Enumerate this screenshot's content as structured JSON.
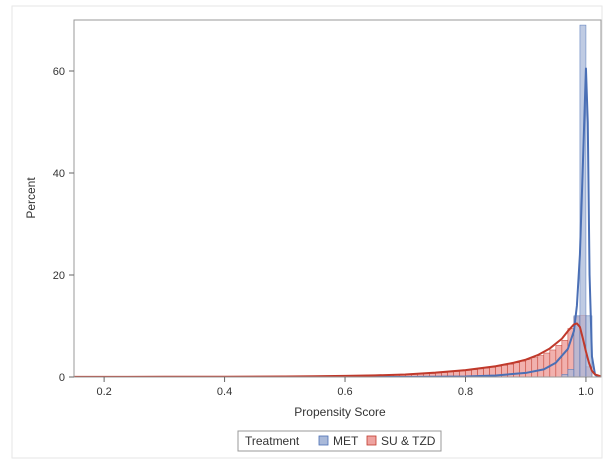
{
  "chart_data": {
    "type": "histogram",
    "title": "",
    "xlabel": "Propensity Score",
    "ylabel": "Percent",
    "xlim": [
      0.15,
      1.025
    ],
    "ylim": [
      0,
      70
    ],
    "xticks": [
      {
        "value": 0.2,
        "label": "0.2"
      },
      {
        "value": 0.4,
        "label": "0.4"
      },
      {
        "value": 0.6,
        "label": "0.6"
      },
      {
        "value": 0.8,
        "label": "0.8"
      },
      {
        "value": 1.0,
        "label": "1.0"
      }
    ],
    "yticks": [
      {
        "value": 0,
        "label": "0"
      },
      {
        "value": 20,
        "label": "20"
      },
      {
        "value": 40,
        "label": "40"
      },
      {
        "value": 60,
        "label": "60"
      }
    ],
    "legend": {
      "title": "Treatment",
      "position": "bottom-center",
      "entries": [
        "MET",
        "SU & TZD"
      ]
    },
    "series": [
      {
        "name": "MET",
        "color": "#4a6fb5",
        "fill": "#a9b9d9",
        "bin_width": 0.01,
        "bins": [
          [
            0.96,
            0.5
          ],
          [
            0.97,
            1.5
          ],
          [
            0.98,
            12
          ],
          [
            0.99,
            69
          ],
          [
            1.0,
            12
          ]
        ],
        "density": [
          [
            0.15,
            0
          ],
          [
            0.7,
            0
          ],
          [
            0.8,
            0.1
          ],
          [
            0.85,
            0.3
          ],
          [
            0.9,
            0.8
          ],
          [
            0.93,
            1.5
          ],
          [
            0.95,
            2.8
          ],
          [
            0.97,
            5.5
          ],
          [
            0.98,
            9
          ],
          [
            0.985,
            14
          ],
          [
            0.99,
            24
          ],
          [
            0.995,
            42
          ],
          [
            1.0,
            60.5
          ],
          [
            1.003,
            50
          ],
          [
            1.006,
            20
          ],
          [
            1.01,
            4
          ],
          [
            1.015,
            0.5
          ],
          [
            1.02,
            0
          ]
        ]
      },
      {
        "name": "SU & TZD",
        "color": "#c0392b",
        "fill": "#eea3a0",
        "bin_width": 0.01,
        "bins": [
          [
            0.6,
            0.15
          ],
          [
            0.61,
            0.15
          ],
          [
            0.62,
            0.2
          ],
          [
            0.63,
            0.2
          ],
          [
            0.64,
            0.25
          ],
          [
            0.65,
            0.3
          ],
          [
            0.66,
            0.3
          ],
          [
            0.67,
            0.35
          ],
          [
            0.68,
            0.4
          ],
          [
            0.69,
            0.45
          ],
          [
            0.7,
            0.5
          ],
          [
            0.71,
            0.55
          ],
          [
            0.72,
            0.6
          ],
          [
            0.73,
            0.65
          ],
          [
            0.74,
            0.7
          ],
          [
            0.75,
            0.8
          ],
          [
            0.76,
            0.9
          ],
          [
            0.77,
            1.0
          ],
          [
            0.78,
            1.1
          ],
          [
            0.79,
            1.2
          ],
          [
            0.8,
            1.3
          ],
          [
            0.81,
            1.45
          ],
          [
            0.82,
            1.6
          ],
          [
            0.83,
            1.75
          ],
          [
            0.84,
            1.9
          ],
          [
            0.85,
            2.1
          ],
          [
            0.86,
            2.3
          ],
          [
            0.87,
            2.5
          ],
          [
            0.88,
            2.8
          ],
          [
            0.89,
            3.1
          ],
          [
            0.9,
            3.4
          ],
          [
            0.91,
            3.8
          ],
          [
            0.92,
            4.2
          ],
          [
            0.93,
            4.7
          ],
          [
            0.94,
            5.3
          ],
          [
            0.95,
            6.2
          ],
          [
            0.96,
            7.2
          ],
          [
            0.97,
            9.5
          ],
          [
            0.98,
            11.8
          ],
          [
            0.99,
            12.1
          ],
          [
            1.0,
            2.0
          ]
        ],
        "density": [
          [
            0.15,
            0.02
          ],
          [
            0.3,
            0.04
          ],
          [
            0.4,
            0.06
          ],
          [
            0.5,
            0.1
          ],
          [
            0.55,
            0.15
          ],
          [
            0.6,
            0.22
          ],
          [
            0.65,
            0.32
          ],
          [
            0.7,
            0.5
          ],
          [
            0.75,
            0.85
          ],
          [
            0.8,
            1.35
          ],
          [
            0.85,
            2.1
          ],
          [
            0.88,
            2.8
          ],
          [
            0.9,
            3.4
          ],
          [
            0.92,
            4.3
          ],
          [
            0.94,
            5.6
          ],
          [
            0.96,
            7.5
          ],
          [
            0.97,
            9.0
          ],
          [
            0.98,
            10.3
          ],
          [
            0.985,
            10.5
          ],
          [
            0.99,
            9.8
          ],
          [
            0.995,
            7.5
          ],
          [
            1.0,
            5.0
          ],
          [
            1.005,
            2.8
          ],
          [
            1.01,
            1.2
          ],
          [
            1.015,
            0.5
          ],
          [
            1.025,
            0.1
          ]
        ]
      }
    ]
  }
}
